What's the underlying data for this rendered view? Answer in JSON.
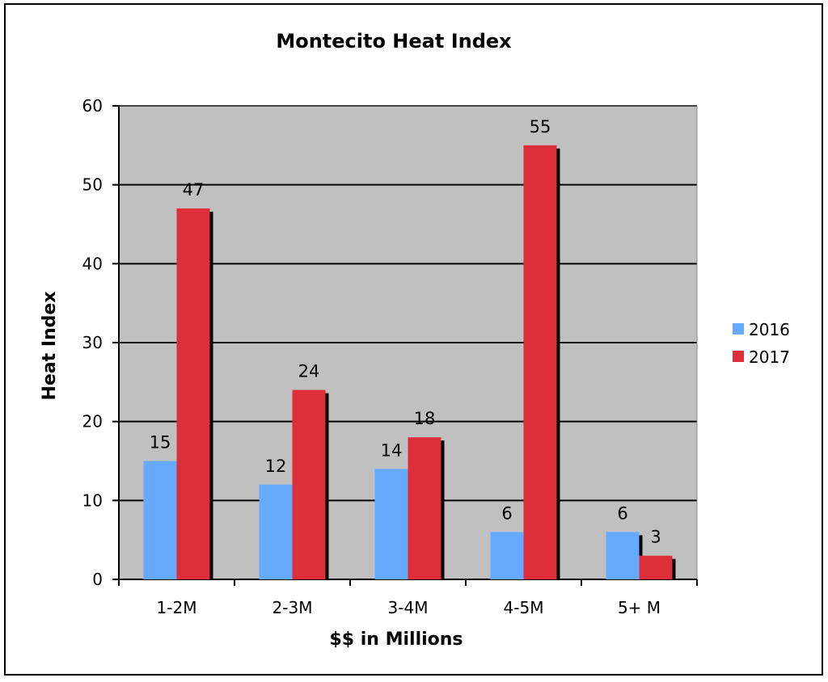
{
  "chart_data": {
    "type": "bar",
    "title": "Montecito Heat Index",
    "xlabel": "$$ in Millions",
    "ylabel": "Heat Index",
    "categories": [
      "1-2M",
      "2-3M",
      "3-4M",
      "4-5M",
      "5+ M"
    ],
    "series": [
      {
        "name": "2016",
        "values": [
          15,
          12,
          14,
          6,
          6
        ],
        "color": "#66aaff"
      },
      {
        "name": "2017",
        "values": [
          47,
          24,
          18,
          55,
          3
        ],
        "color": "#dd2f3a"
      }
    ],
    "ylim": [
      0,
      60
    ],
    "yticks": [
      0,
      10,
      20,
      30,
      40,
      50,
      60
    ],
    "grid": true,
    "plot_background": "#c0c0c0",
    "legend_position": "right"
  }
}
